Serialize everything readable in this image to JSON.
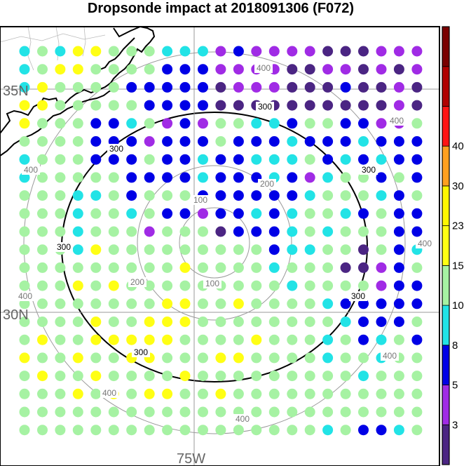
{
  "title": "Dropsonde impact at 2018091306 (F072)",
  "labels": {
    "lat_north": "35N",
    "lat_south": "30N",
    "lon": "75W"
  },
  "range_rings": [
    "100",
    "200",
    "300",
    "400"
  ],
  "highlight_ring": "300",
  "colorbar": {
    "ticks": [
      "3",
      "5",
      "8",
      "10",
      "15",
      "23",
      "30",
      "40"
    ],
    "colors": [
      "#4b2583",
      "#a02be5",
      "#0000e6",
      "#22e3e6",
      "#a6f2a3",
      "#ffff14",
      "#fff700",
      "#ffa020",
      "#ff1414",
      "#b10000",
      "#7a0000"
    ]
  },
  "dot_palette": {
    "a": "#a6f2a3",
    "y": "#ffff14",
    "c": "#22e3e6",
    "b": "#0000e6",
    "p": "#a02be5",
    "d": "#4b2583"
  },
  "grid_rows": [
    "cacyyaaacccpbppppdddppp",
    "cayyaaaabbbppppddppdpdp",
    "cyaaaabbbbbdpppdddbddpd",
    "yyaaaaabbbbddddddddddpd",
    "yaaabbcapbpaaccbaabbppa",
    "aaaabbbpbbbabbbcbbbcbbb",
    "caaabbbabbcbbcccabcbcbb",
    "caaaaabbbbcbbbcbpcaabab",
    "aaaccabaaabbbbbbcaaacba",
    "aaacaacabbpbbcbcaacbabb",
    "aaacaaapaaadbbbcacaaabb",
    "aaacyaaaaaaaaabccaadabc",
    "aaaaaaaaayaaaacaaaddpba",
    "aaayayaaaaaaaaacaaaapbb",
    "aaaaaaaayyaayaaaacbbbbb",
    "aaaayaayyyaaaaaaaacbbba",
    "ayaayyyyyaaaayaaacabcab",
    "yaayaayyaaayyaaaacaacaa",
    "ayaayaaaayaaaaaaaaacaaa",
    "aaayayayyaayaaaaaaaaaaa",
    "aaaaaaaaaaaaaaaaaaaaaaa",
    "aaaaaaaaaaaaaaaaacabbca"
  ]
}
